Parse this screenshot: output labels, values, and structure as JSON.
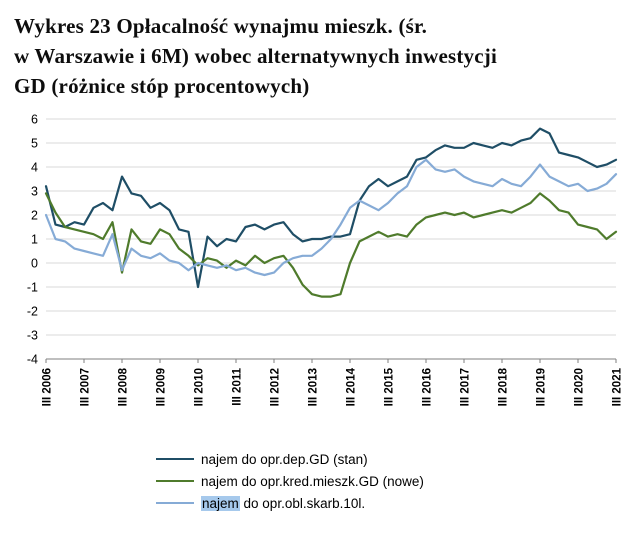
{
  "title": {
    "lines": [
      "Wykres 23 Opłacalność wynajmu mieszk. (śr.",
      "w Warszawie i 6M) wobec alternatywnych inwestycji",
      "GD (różnice stóp procentowych)"
    ]
  },
  "chart_data": {
    "type": "line",
    "title": "Opłacalność wynajmu mieszk. (śr. w Warszawie i 6M) wobec alternatywnych inwestycji GD (różnice stóp procentowych)",
    "xlabel": "",
    "ylabel": "",
    "ylim": [
      -4,
      6
    ],
    "y_ticks": [
      6,
      5,
      4,
      3,
      2,
      1,
      0,
      -1,
      -2,
      -3,
      -4
    ],
    "grid": true,
    "legend_position": "bottom",
    "x_unit": "quarter",
    "x_range": "III 2006 - III 2021 (quarterly)",
    "tick_every": 4,
    "x_tick_labels": [
      "III 2006",
      "III 2007",
      "III 2008",
      "III 2009",
      "III 2010",
      "III 2011",
      "III 2012",
      "III 2013",
      "III 2014",
      "III 2015",
      "III 2016",
      "III 2017",
      "III 2018",
      "III 2019",
      "III 2020",
      "III 2021"
    ],
    "colors": {
      "grid": "#D9D9D9",
      "axis": "#7F7F7F"
    },
    "series": [
      {
        "id": "dep",
        "name": "najem do opr.dep.GD (stan)",
        "color": "#1F4E66",
        "values": [
          3.2,
          1.6,
          1.5,
          1.7,
          1.6,
          2.3,
          2.5,
          2.2,
          3.6,
          2.9,
          2.8,
          2.3,
          2.5,
          2.2,
          1.4,
          1.3,
          -1.0,
          1.1,
          0.7,
          1.0,
          0.9,
          1.5,
          1.6,
          1.4,
          1.6,
          1.7,
          1.2,
          0.9,
          1.0,
          1.0,
          1.1,
          1.1,
          1.2,
          2.6,
          3.2,
          3.5,
          3.2,
          3.4,
          3.6,
          4.3,
          4.4,
          4.7,
          4.9,
          4.8,
          4.8,
          5.0,
          4.9,
          4.8,
          5.0,
          4.9,
          5.1,
          5.2,
          5.6,
          5.4,
          4.6,
          4.5,
          4.4,
          4.2,
          4.0,
          4.1,
          4.3
        ]
      },
      {
        "id": "kred",
        "name": "najem do opr.kred.mieszk.GD (nowe)",
        "color": "#4F7B2C",
        "values": [
          2.9,
          2.1,
          1.5,
          1.4,
          1.3,
          1.2,
          1.0,
          1.7,
          -0.4,
          1.4,
          0.9,
          0.8,
          1.4,
          1.2,
          0.6,
          0.3,
          -0.1,
          0.2,
          0.1,
          -0.2,
          0.1,
          -0.1,
          0.3,
          0.0,
          0.2,
          0.3,
          -0.2,
          -0.9,
          -1.3,
          -1.4,
          -1.4,
          -1.3,
          0.0,
          0.9,
          1.1,
          1.3,
          1.1,
          1.2,
          1.1,
          1.6,
          1.9,
          2.0,
          2.1,
          2.0,
          2.1,
          1.9,
          2.0,
          2.1,
          2.2,
          2.1,
          2.3,
          2.5,
          2.9,
          2.6,
          2.2,
          2.1,
          1.6,
          1.5,
          1.4,
          1.0,
          1.3
        ]
      },
      {
        "id": "obl",
        "name": "najem do opr.obl.skarb.10l.",
        "color": "#86ABD6",
        "highlight": {
          "text": "najem",
          "color": "#A6C9EC"
        },
        "values": [
          2.0,
          1.0,
          0.9,
          0.6,
          0.5,
          0.4,
          0.3,
          1.2,
          -0.3,
          0.6,
          0.3,
          0.2,
          0.4,
          0.1,
          0.0,
          -0.3,
          0.0,
          -0.1,
          -0.2,
          -0.1,
          -0.3,
          -0.2,
          -0.4,
          -0.5,
          -0.4,
          0.0,
          0.2,
          0.3,
          0.3,
          0.6,
          1.0,
          1.6,
          2.3,
          2.6,
          2.4,
          2.2,
          2.5,
          2.9,
          3.2,
          4.0,
          4.3,
          3.9,
          3.8,
          3.9,
          3.6,
          3.4,
          3.3,
          3.2,
          3.5,
          3.3,
          3.2,
          3.6,
          4.1,
          3.6,
          3.4,
          3.2,
          3.3,
          3.0,
          3.1,
          3.3,
          3.7
        ]
      }
    ]
  }
}
